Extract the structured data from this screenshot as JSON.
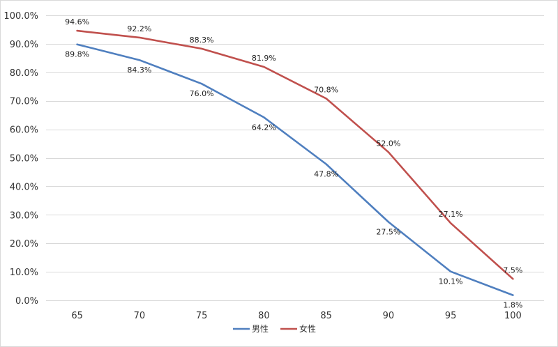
{
  "chart_data": {
    "type": "line",
    "x": [
      "65",
      "70",
      "75",
      "80",
      "85",
      "90",
      "95",
      "100"
    ],
    "ylim": [
      0,
      100
    ],
    "ytick_step": 10,
    "y_ticks": [
      "0.0%",
      "10.0%",
      "20.0%",
      "30.0%",
      "40.0%",
      "50.0%",
      "60.0%",
      "70.0%",
      "80.0%",
      "90.0%",
      "100.0%"
    ],
    "grid": true,
    "legend_position": "bottom-center",
    "series": [
      {
        "name": "男性",
        "color": "#4f7fbf",
        "values": [
          89.8,
          84.3,
          76.0,
          64.2,
          47.8,
          27.5,
          10.1,
          1.8
        ],
        "labels": [
          "89.8%",
          "84.3%",
          "76.0%",
          "64.2%",
          "47.8%",
          "27.5%",
          "10.1%",
          "1.8%"
        ]
      },
      {
        "name": "女性",
        "color": "#c0504d",
        "values": [
          94.6,
          92.2,
          88.3,
          81.9,
          70.8,
          52.0,
          27.1,
          7.5
        ],
        "labels": [
          "94.6%",
          "92.2%",
          "88.3%",
          "81.9%",
          "70.8%",
          "52.0%",
          "27.1%",
          "7.5%"
        ]
      }
    ]
  }
}
